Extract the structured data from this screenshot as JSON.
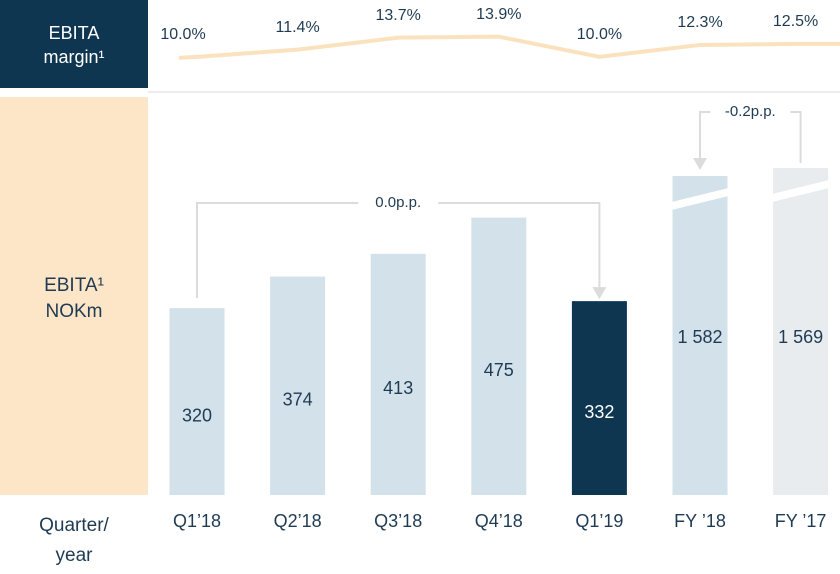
{
  "row_labels": {
    "margin": [
      "EBITA",
      "margin¹"
    ],
    "ebita": [
      "EBITA¹",
      "NOKm"
    ],
    "period": [
      "Quarter/",
      "year"
    ]
  },
  "chart_data": [
    {
      "type": "bar",
      "categories": [
        "Q1’18",
        "Q2’18",
        "Q3’18",
        "Q4’18",
        "Q1’19",
        "FY ’18",
        "FY ’17"
      ],
      "values": [
        320,
        374,
        413,
        475,
        332,
        1582,
        1569
      ],
      "value_labels": [
        "320",
        "374",
        "413",
        "475",
        "332",
        "1 582",
        "1 569"
      ],
      "colors": [
        "#d2e1ea",
        "#d2e1ea",
        "#d2e1ea",
        "#d2e1ea",
        "#0e3651",
        "#d2e1ea",
        "#e8ecef"
      ],
      "ylim": [
        0,
        560
      ],
      "annotations": [
        {
          "text": "0.0p.p.",
          "from": 0,
          "to": 4
        },
        {
          "text": "-0.2p.p.",
          "from": 6,
          "to": 5
        }
      ]
    },
    {
      "type": "line",
      "values": [
        10.0,
        11.4,
        13.7,
        13.9,
        10.0,
        12.3,
        12.5
      ],
      "value_labels": [
        "10.0%",
        "11.4%",
        "13.7%",
        "13.9%",
        "10.0%",
        "12.3%",
        "12.5%"
      ],
      "color": "#fbe2bf",
      "ylim": [
        4,
        20
      ]
    }
  ]
}
